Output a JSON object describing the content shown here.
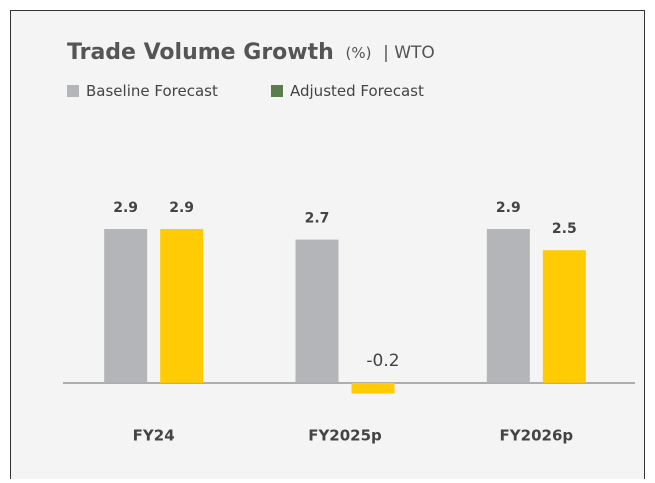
{
  "chart_data": {
    "type": "bar",
    "title": "Trade Volume Growth",
    "title_unit": "(%)",
    "source": "| WTO",
    "categories": [
      "FY24",
      "FY2025p",
      "FY2026p"
    ],
    "series": [
      {
        "name": "Baseline Forecast",
        "color": "#b3b5b8",
        "legend_color": "#b3b5b8",
        "values": [
          2.9,
          2.7,
          2.9
        ]
      },
      {
        "name": "Adjusted Forecast",
        "color": "#ffcb05",
        "legend_color": "#5b7d4e",
        "values": [
          2.9,
          -0.2,
          2.5
        ]
      }
    ],
    "ylim": [
      -0.5,
      4
    ],
    "grid": false
  }
}
